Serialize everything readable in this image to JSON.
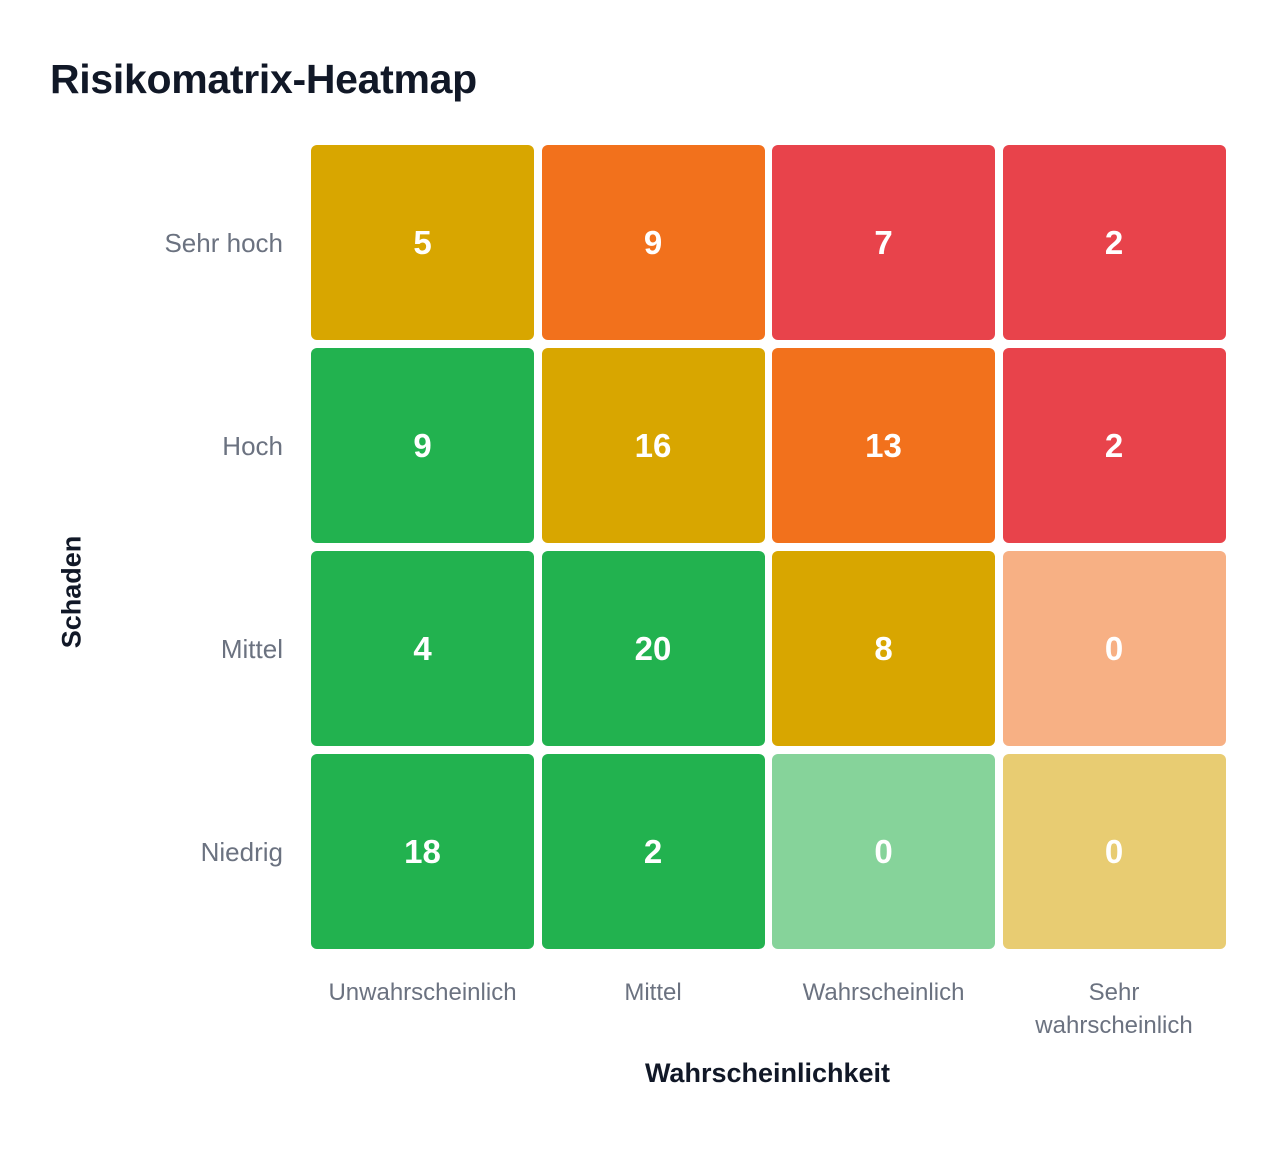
{
  "chart_data": {
    "type": "heatmap",
    "title": "Risikomatrix-Heatmap",
    "xlabel": "Wahrscheinlichkeit",
    "ylabel": "Schaden",
    "x_categories": [
      "Unwahrscheinlich",
      "Mittel",
      "Wahrscheinlich",
      "Sehr wahrscheinlich"
    ],
    "x_category_lines": [
      [
        "Unwahrscheinlich"
      ],
      [
        "Mittel"
      ],
      [
        "Wahrscheinlich"
      ],
      [
        "Sehr",
        "wahrscheinlich"
      ]
    ],
    "y_categories": [
      "Sehr hoch",
      "Hoch",
      "Mittel",
      "Niedrig"
    ],
    "values": [
      [
        5,
        9,
        7,
        2
      ],
      [
        9,
        16,
        13,
        2
      ],
      [
        4,
        20,
        8,
        0
      ],
      [
        18,
        2,
        0,
        0
      ]
    ],
    "cell_colors": [
      [
        "#d8a600",
        "#f2711c",
        "#e8434b",
        "#e8434b"
      ],
      [
        "#22b24f",
        "#d8a600",
        "#f2711c",
        "#e8434b"
      ],
      [
        "#22b24f",
        "#22b24f",
        "#d8a600",
        "#f7b084"
      ],
      [
        "#22b24f",
        "#22b24f",
        "#86d39a",
        "#e8cc72"
      ]
    ],
    "grid": false,
    "legend": "none"
  }
}
